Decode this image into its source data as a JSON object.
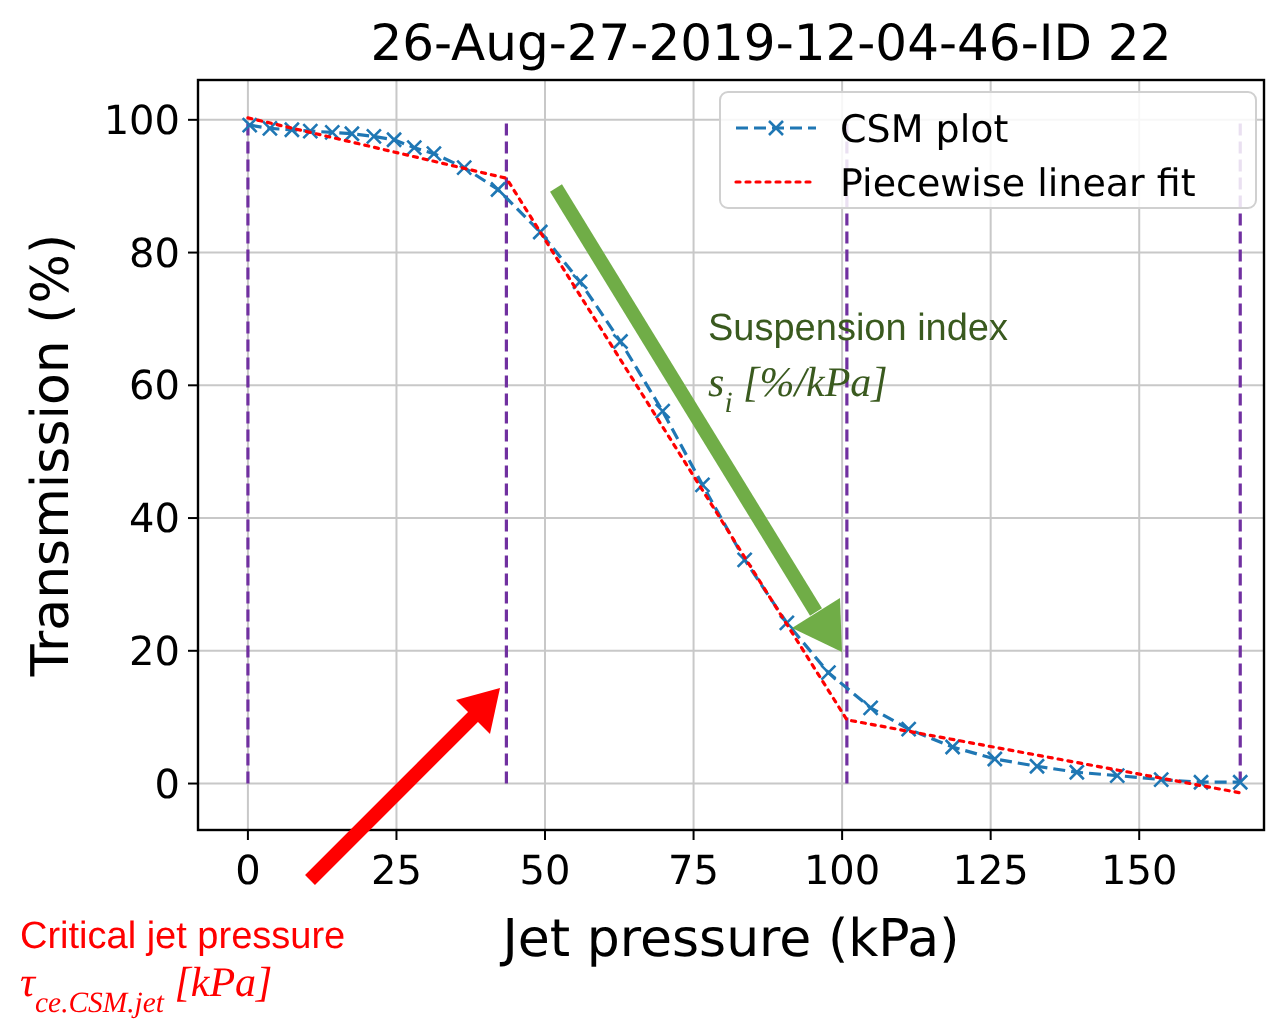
{
  "chart_data": {
    "type": "line",
    "title": "26-Aug-27-2019-12-04-46-ID 22",
    "xlabel": "Jet pressure (kPa)",
    "ylabel": "Transmission (%)",
    "xlim": [
      -8.4,
      171
    ],
    "ylim": [
      -7,
      106
    ],
    "xticks": [
      0,
      25,
      50,
      75,
      100,
      125,
      150
    ],
    "yticks": [
      0,
      20,
      40,
      60,
      80,
      100
    ],
    "grid": true,
    "legend": "top right",
    "series": [
      {
        "name": "CSM plot",
        "color": "#1f77b4",
        "marker": "cross",
        "line_style": "dashed",
        "x": [
          0.3,
          3.7,
          7.4,
          10.5,
          14.2,
          17.5,
          21.2,
          24.6,
          28,
          31.3,
          36.4,
          42.1,
          49.2,
          55.9,
          62.7,
          69.8,
          76.5,
          83.6,
          90.7,
          97.7,
          104.8,
          111.2,
          118.6,
          125.7,
          132.8,
          139.5,
          146.3,
          153.7,
          160.4,
          167
        ],
        "values": [
          99.2,
          98.7,
          98.5,
          98.3,
          98.1,
          97.9,
          97.5,
          97,
          95.8,
          94.9,
          92.8,
          89.5,
          83.1,
          75.6,
          66.6,
          56.1,
          45,
          33.7,
          24.2,
          16.7,
          11.4,
          8.2,
          5.5,
          3.7,
          2.6,
          1.7,
          1.2,
          0.6,
          0.2,
          0.2
        ]
      },
      {
        "name": "Piecewise linear fit",
        "color": "#ff0000",
        "marker": "none",
        "line_style": "dotted",
        "x": [
          0,
          43.5,
          100.8,
          167
        ],
        "values": [
          100.3,
          91.2,
          9.6,
          -1.4
        ]
      }
    ],
    "ref_lines": [
      {
        "axis": "x",
        "value": 0,
        "color": "#7030a0",
        "line_style": "dashed"
      },
      {
        "axis": "x",
        "value": 43.5,
        "color": "#7030a0",
        "line_style": "dashed"
      },
      {
        "axis": "x",
        "value": 100.8,
        "color": "#7030a0",
        "line_style": "dashed"
      },
      {
        "axis": "x",
        "value": 167,
        "color": "#7030a0",
        "line_style": "dashed"
      }
    ],
    "annotations": [
      "Suspension index",
      "s$_{i}$ [%/kPa]",
      "Critical jet pressure",
      "τ$_{ce.CSM.jet}$ [kPa]"
    ]
  }
}
